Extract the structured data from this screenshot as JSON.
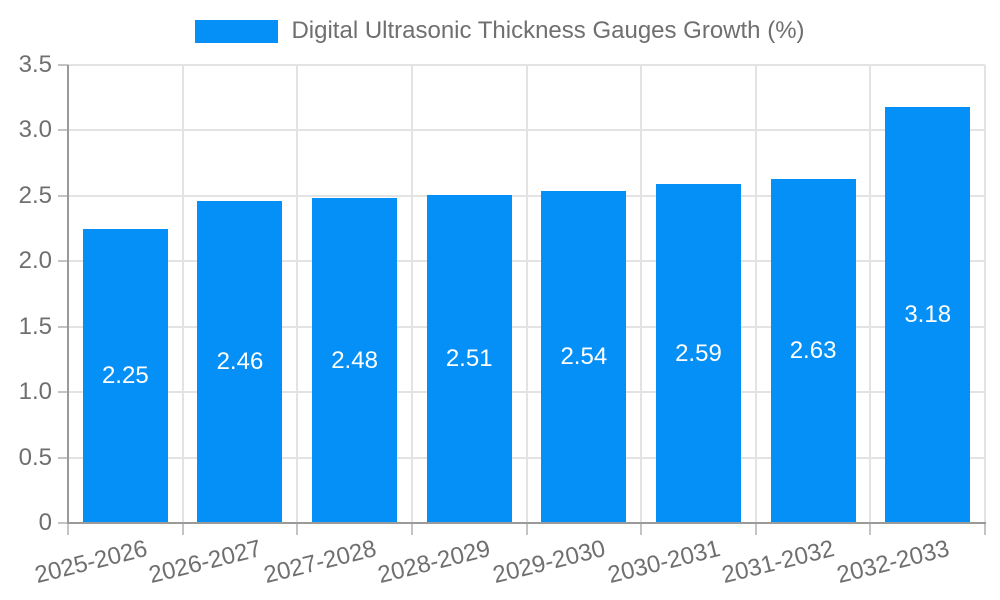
{
  "chart_data": {
    "type": "bar",
    "title": "Digital Ultrasonic Thickness Gauges Growth (%)",
    "categories": [
      "2025-2026",
      "2026-2027",
      "2027-2028",
      "2028-2029",
      "2029-2030",
      "2030-2031",
      "2031-2032",
      "2032-2033"
    ],
    "values": [
      2.25,
      2.46,
      2.48,
      2.51,
      2.54,
      2.59,
      2.63,
      3.18
    ],
    "value_labels": [
      "2.25",
      "2.46",
      "2.48",
      "2.51",
      "2.54",
      "2.59",
      "2.63",
      "3.18"
    ],
    "xlabel": "",
    "ylabel": "",
    "ylim": [
      0,
      3.5
    ],
    "ytick_values": [
      0,
      0.5,
      1.0,
      1.5,
      2.0,
      2.5,
      3.0,
      3.5
    ],
    "ytick_labels": [
      "0",
      "0.5",
      "1.0",
      "1.5",
      "2.0",
      "2.5",
      "3.0",
      "3.5"
    ],
    "grid": "on",
    "legend_position": "top-center",
    "value_label_position": "center-of-bar"
  },
  "colors": {
    "bar": "#0590F8",
    "bar_value_label": "#ffffff",
    "gridline": "#e3e3e3",
    "axis_border": "#9a9a9a",
    "tick_mark": "#c4c4c4",
    "axis_text": "#6f6f6f",
    "background": "#ffffff"
  }
}
